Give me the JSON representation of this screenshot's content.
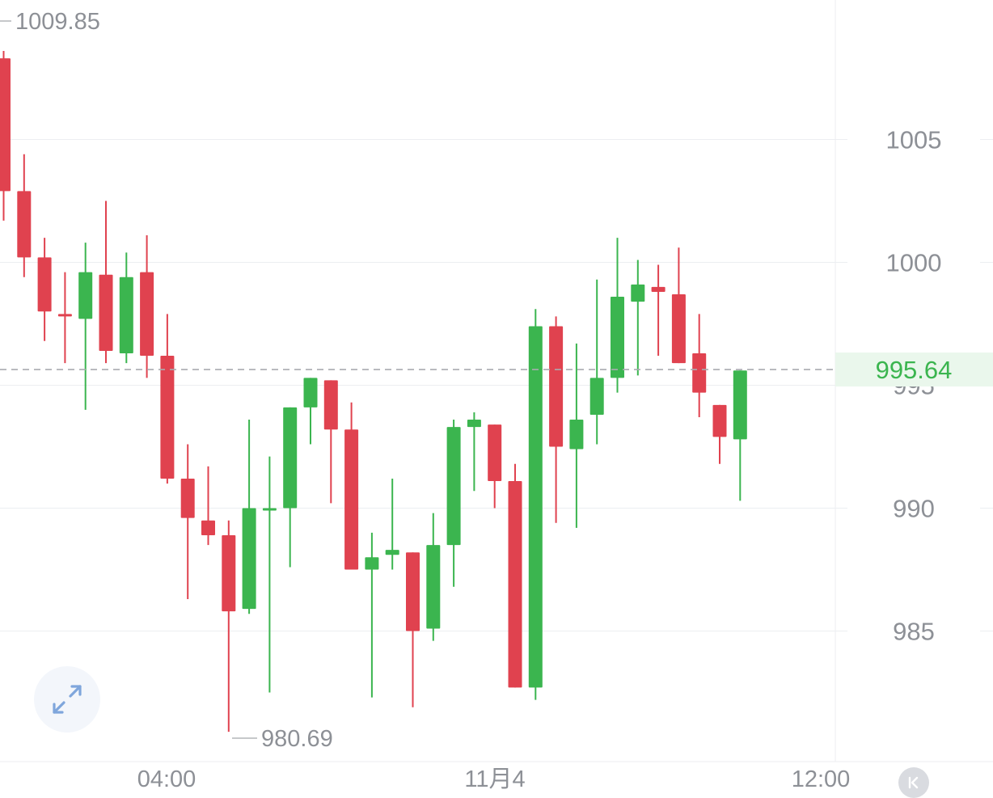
{
  "colors": {
    "up": "#3bb54f",
    "down": "#e0424f",
    "grid": "#eceef1",
    "axis_text": "#8d9096",
    "last_price_text": "#3bb54f",
    "last_price_bg": "#eaf7ec",
    "last_price_line": "#a9abb0"
  },
  "icons": {
    "expand": "expand-arrows-icon",
    "collapse": "collapse-left-icon"
  },
  "chart_data": {
    "type": "candlestick",
    "y_axis": {
      "ticks": [
        "1005",
        "1000",
        "990",
        "985"
      ],
      "ylim": [
        980,
        1010
      ]
    },
    "x_axis": {
      "ticks": [
        "04:00",
        "11月4",
        "12:00"
      ]
    },
    "period_high_label": "1009.85",
    "period_low_label": "980.69",
    "last_price_label": "995.64",
    "last_price": 995.64,
    "candles": [
      {
        "o": 1008.3,
        "h": 1008.6,
        "l": 1001.7,
        "c": 1002.9
      },
      {
        "o": 1002.9,
        "h": 1004.4,
        "l": 999.4,
        "c": 1000.2
      },
      {
        "o": 1000.2,
        "h": 1001.0,
        "l": 996.8,
        "c": 998.0
      },
      {
        "o": 997.9,
        "h": 999.6,
        "l": 995.9,
        "c": 997.8
      },
      {
        "o": 997.7,
        "h": 1000.8,
        "l": 994.0,
        "c": 999.6
      },
      {
        "o": 999.5,
        "h": 1002.5,
        "l": 995.9,
        "c": 996.4
      },
      {
        "o": 996.3,
        "h": 1000.4,
        "l": 995.9,
        "c": 999.4
      },
      {
        "o": 999.6,
        "h": 1001.1,
        "l": 995.3,
        "c": 996.2
      },
      {
        "o": 996.2,
        "h": 997.9,
        "l": 991.0,
        "c": 991.2
      },
      {
        "o": 991.2,
        "h": 992.6,
        "l": 986.3,
        "c": 989.6
      },
      {
        "o": 989.5,
        "h": 991.7,
        "l": 988.5,
        "c": 988.9
      },
      {
        "o": 988.9,
        "h": 989.5,
        "l": 980.9,
        "c": 985.8
      },
      {
        "o": 985.9,
        "h": 993.6,
        "l": 985.7,
        "c": 990.0
      },
      {
        "o": 990.0,
        "h": 992.1,
        "l": 982.5,
        "c": 990.0
      },
      {
        "o": 990.0,
        "h": 994.1,
        "l": 987.6,
        "c": 994.1
      },
      {
        "o": 994.1,
        "h": 995.3,
        "l": 992.6,
        "c": 995.3
      },
      {
        "o": 995.2,
        "h": 995.2,
        "l": 990.2,
        "c": 993.2
      },
      {
        "o": 993.2,
        "h": 994.3,
        "l": 987.5,
        "c": 987.5
      },
      {
        "o": 987.5,
        "h": 989.0,
        "l": 982.3,
        "c": 988.0
      },
      {
        "o": 988.1,
        "h": 991.2,
        "l": 987.5,
        "c": 988.3
      },
      {
        "o": 988.2,
        "h": 988.2,
        "l": 981.9,
        "c": 985.0
      },
      {
        "o": 985.1,
        "h": 989.8,
        "l": 984.6,
        "c": 988.5
      },
      {
        "o": 988.5,
        "h": 993.6,
        "l": 986.8,
        "c": 993.3
      },
      {
        "o": 993.3,
        "h": 993.9,
        "l": 990.7,
        "c": 993.6
      },
      {
        "o": 993.4,
        "h": 993.4,
        "l": 990.0,
        "c": 991.1
      },
      {
        "o": 991.1,
        "h": 991.8,
        "l": 982.7,
        "c": 982.7
      },
      {
        "o": 982.7,
        "h": 998.1,
        "l": 982.2,
        "c": 997.4
      },
      {
        "o": 997.4,
        "h": 997.8,
        "l": 989.4,
        "c": 992.5
      },
      {
        "o": 992.4,
        "h": 996.7,
        "l": 989.2,
        "c": 993.6
      },
      {
        "o": 993.8,
        "h": 999.3,
        "l": 992.6,
        "c": 995.3
      },
      {
        "o": 995.3,
        "h": 1001.0,
        "l": 994.7,
        "c": 998.6
      },
      {
        "o": 998.4,
        "h": 1000.1,
        "l": 995.4,
        "c": 999.1
      },
      {
        "o": 999.0,
        "h": 999.9,
        "l": 996.2,
        "c": 998.8
      },
      {
        "o": 998.7,
        "h": 1000.6,
        "l": 995.9,
        "c": 995.9
      },
      {
        "o": 996.3,
        "h": 997.9,
        "l": 993.7,
        "c": 994.7
      },
      {
        "o": 994.2,
        "h": 994.2,
        "l": 991.8,
        "c": 992.9
      },
      {
        "o": 992.8,
        "h": 995.6,
        "l": 990.3,
        "c": 995.6
      }
    ]
  }
}
